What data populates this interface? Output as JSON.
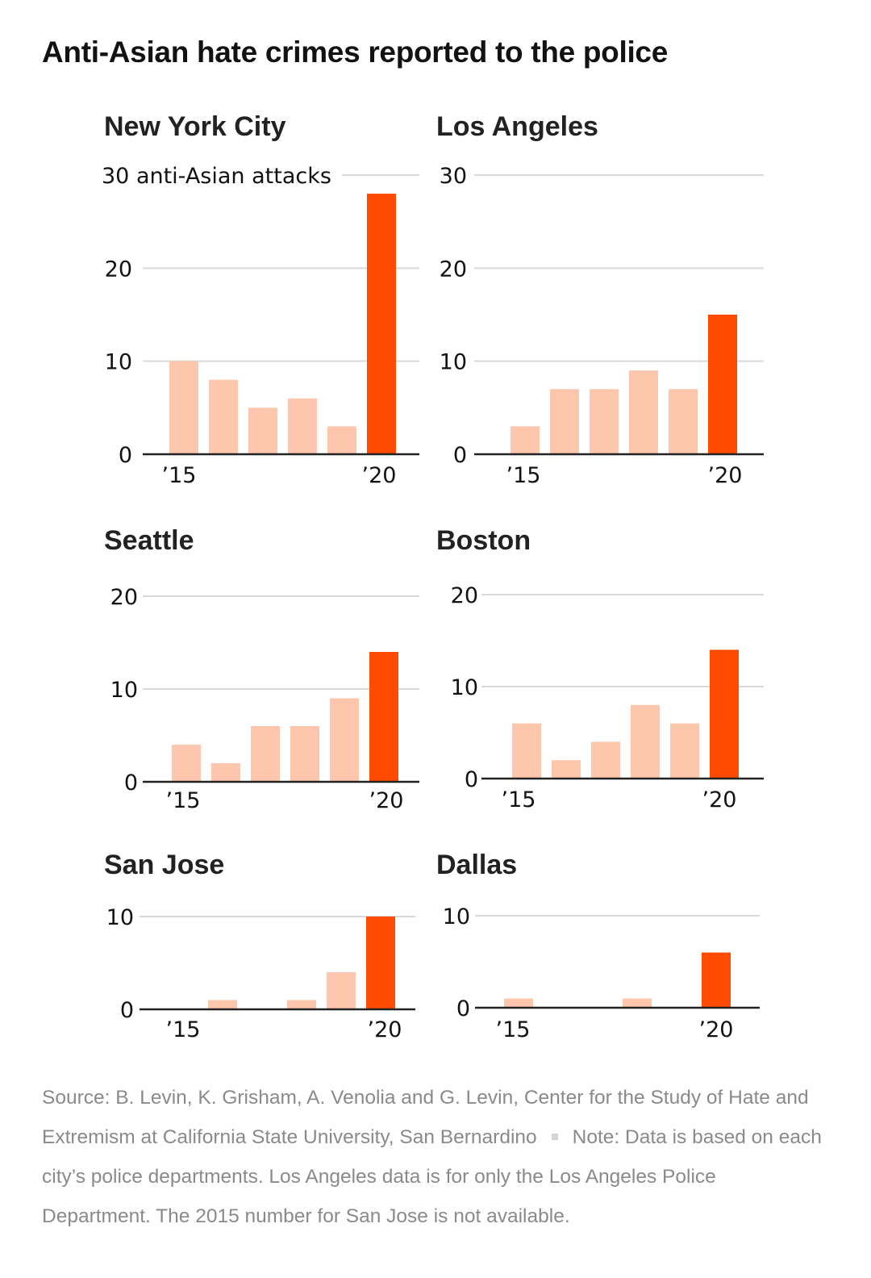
{
  "title": "Anti-Asian hate crimes reported to the police",
  "colors": {
    "past": "#fdc6ad",
    "current": "#ff4a00",
    "grid": "#d9d9d9",
    "axis": "#222222"
  },
  "chart_data": [
    {
      "type": "bar",
      "title": "New York City",
      "categories": [
        "2015",
        "2016",
        "2017",
        "2018",
        "2019",
        "2020"
      ],
      "values": [
        10,
        8,
        5,
        6,
        3,
        28
      ],
      "yticks": [
        0,
        10,
        20,
        30
      ],
      "ytick_labels": [
        "0",
        "10",
        "20",
        "30 anti-Asian attacks"
      ],
      "xtick_labels": [
        "’15",
        "’20"
      ],
      "ylim": [
        0,
        30
      ]
    },
    {
      "type": "bar",
      "title": "Los Angeles",
      "categories": [
        "2015",
        "2016",
        "2017",
        "2018",
        "2019",
        "2020"
      ],
      "values": [
        3,
        7,
        7,
        9,
        7,
        15
      ],
      "yticks": [
        0,
        10,
        20,
        30
      ],
      "ytick_labels": [
        "0",
        "10",
        "20",
        "30"
      ],
      "xtick_labels": [
        "’15",
        "’20"
      ],
      "ylim": [
        0,
        30
      ]
    },
    {
      "type": "bar",
      "title": "Seattle",
      "categories": [
        "2015",
        "2016",
        "2017",
        "2018",
        "2019",
        "2020"
      ],
      "values": [
        4,
        2,
        6,
        6,
        9,
        14
      ],
      "yticks": [
        0,
        10,
        20
      ],
      "ytick_labels": [
        "0",
        "10",
        "20"
      ],
      "xtick_labels": [
        "’15",
        "’20"
      ],
      "ylim": [
        0,
        20
      ]
    },
    {
      "type": "bar",
      "title": "Boston",
      "categories": [
        "2015",
        "2016",
        "2017",
        "2018",
        "2019",
        "2020"
      ],
      "values": [
        6,
        2,
        4,
        8,
        6,
        14
      ],
      "yticks": [
        0,
        10,
        20
      ],
      "ytick_labels": [
        "0",
        "10",
        "20"
      ],
      "xtick_labels": [
        "’15",
        "’20"
      ],
      "ylim": [
        0,
        20
      ]
    },
    {
      "type": "bar",
      "title": "San Jose",
      "categories": [
        "2015",
        "2016",
        "2017",
        "2018",
        "2019",
        "2020"
      ],
      "values": [
        null,
        1,
        0,
        1,
        4,
        10
      ],
      "yticks": [
        0,
        10
      ],
      "ytick_labels": [
        "0",
        "10"
      ],
      "xtick_labels": [
        "’15",
        "’20"
      ],
      "ylim": [
        0,
        10
      ]
    },
    {
      "type": "bar",
      "title": "Dallas",
      "categories": [
        "2015",
        "2016",
        "2017",
        "2018",
        "2019",
        "2020"
      ],
      "values": [
        1,
        0,
        0,
        1,
        0,
        6
      ],
      "yticks": [
        0,
        10
      ],
      "ytick_labels": [
        "0",
        "10"
      ],
      "xtick_labels": [
        "’15",
        "’20"
      ],
      "ylim": [
        0,
        10
      ]
    }
  ],
  "footer": {
    "source": "Source: B. Levin, K. Grisham, A. Venolia and G. Levin, Center for the Study of Hate and Extremism at California State University, San Bernardino",
    "note": "Note: Data is based on each city’s police departments. Los Angeles data is for only the Los Angeles Police Department. The 2015 number for San Jose is not available."
  }
}
